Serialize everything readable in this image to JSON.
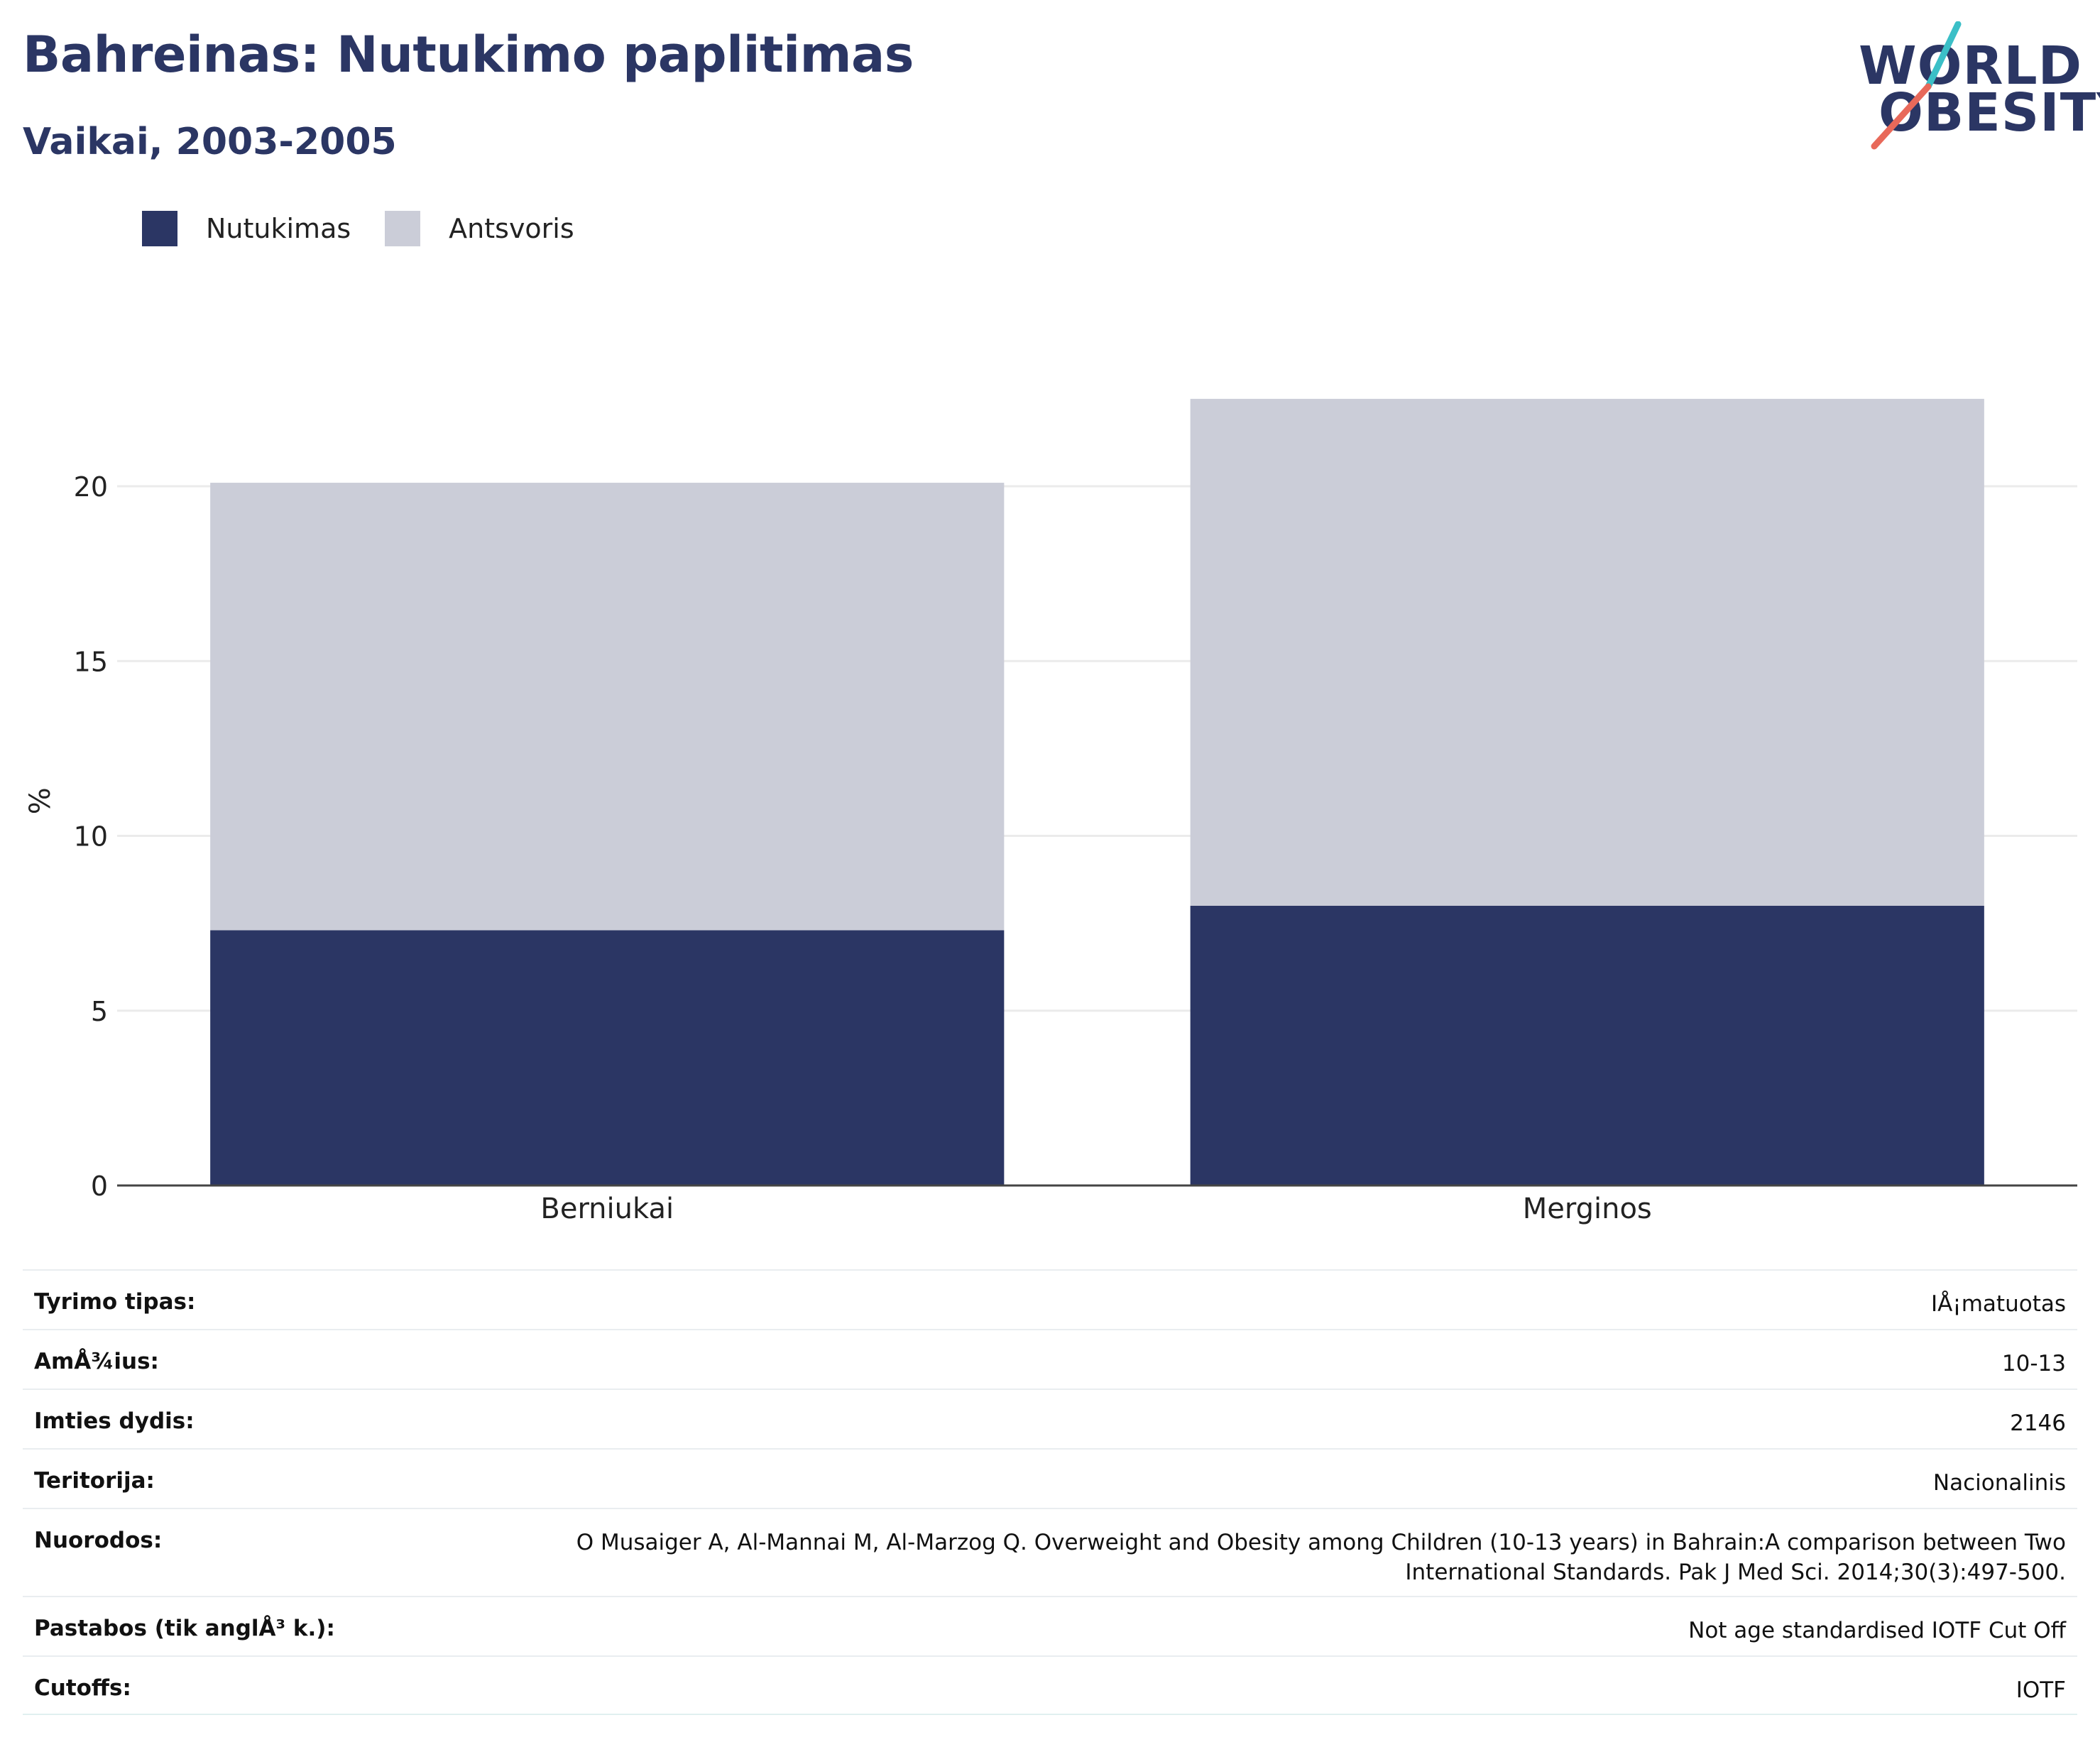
{
  "header": {
    "title": "Bahreinas: Nutukimo paplitimas",
    "subtitle": "Vaikai, 2003-2005"
  },
  "logo": {
    "line1": "WORLD",
    "line2": "OBESITY"
  },
  "colors": {
    "obesity": "#2b3664",
    "overweight": "#cbcdd8",
    "title": "#2b3664",
    "logo_teal": "#3bbfc7",
    "logo_red": "#e8695a"
  },
  "legend": [
    {
      "label": "Nutukimas",
      "color": "#2b3664"
    },
    {
      "label": "Antsvoris",
      "color": "#cbcdd8"
    }
  ],
  "chart_data": {
    "type": "bar",
    "stacked": true,
    "categories": [
      "Berniukai",
      "Merginos"
    ],
    "series": [
      {
        "name": "Nutukimas",
        "values": [
          7.3,
          8.0
        ]
      },
      {
        "name": "Antsvoris",
        "values": [
          12.8,
          14.5
        ]
      }
    ],
    "ylabel": "%",
    "ylim": [
      0,
      22.5
    ],
    "yticks": [
      0,
      5,
      10,
      15,
      20
    ],
    "grid": true,
    "legend_position": "top-left"
  },
  "info": {
    "rows": [
      {
        "label": "Tyrimo tipas:",
        "value": "IÅ¡matuotas"
      },
      {
        "label": "AmÅ¾ius:",
        "value": "10-13"
      },
      {
        "label": "Imties dydis:",
        "value": "2146"
      },
      {
        "label": "Teritorija:",
        "value": "Nacionalinis"
      },
      {
        "label": "Nuorodos:",
        "value": "O Musaiger A, Al-Mannai M, Al-Marzog Q. Overweight and Obesity among Children (10-13 years) in Bahrain:A comparison between Two International Standards. Pak J Med Sci. 2014;30(3):497-500."
      },
      {
        "label": "Pastabos (tik anglÅ³ k.):",
        "value": "Not age standardised IOTF Cut Off"
      },
      {
        "label": "Cutoffs:",
        "value": "IOTF"
      }
    ]
  }
}
